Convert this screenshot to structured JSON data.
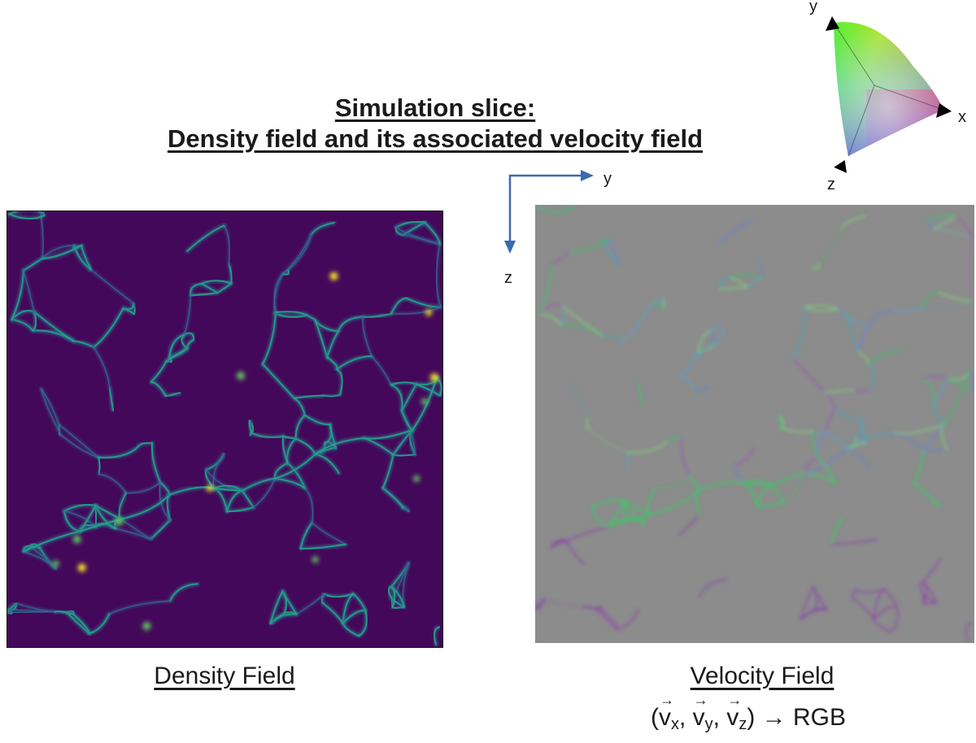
{
  "title": {
    "line1": "Simulation slice:",
    "line2": "Density field and its associated velocity field"
  },
  "axes": {
    "horizontal_label": "y",
    "vertical_label": "z",
    "color": "#3a6ab0"
  },
  "color_legend": {
    "x_label": "x",
    "y_label": "y",
    "z_label": "z"
  },
  "density_panel": {
    "caption": "Density Field",
    "colormap": "viridis",
    "background_color": "#44085a"
  },
  "velocity_panel": {
    "caption": "Velocity Field",
    "background_color": "#8c8c8c",
    "formula": {
      "open": "(",
      "v": "v",
      "sub_x": "x",
      "sub_y": "y",
      "sub_z": "z",
      "sep": ", ",
      "close": ")",
      "arrow": " → RGB"
    }
  }
}
